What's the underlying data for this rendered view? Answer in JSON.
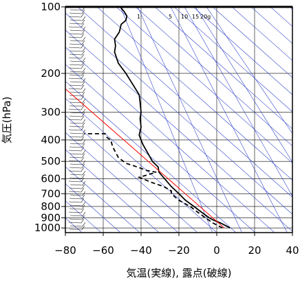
{
  "chart_data": {
    "type": "line",
    "subtype": "skew-T log-P emagram",
    "xlabel": "気温(実線), 露点(破線)",
    "ylabel": "気圧(hPa)",
    "xlim": [
      -80,
      40
    ],
    "ylim_hpa": [
      1050,
      100
    ],
    "y_scale": "log",
    "x_ticks": [
      -80,
      -60,
      -40,
      -20,
      0,
      20,
      40
    ],
    "x_tick_labels": [
      "−80",
      "−60",
      "−40",
      "−20",
      "0",
      "20",
      "40"
    ],
    "y_ticks": [
      100,
      200,
      300,
      400,
      500,
      600,
      700,
      800,
      900,
      1000
    ],
    "y_tick_labels": [
      "100",
      "200",
      "300",
      "400",
      "500",
      "600",
      "700",
      "800",
      "900",
      "1000"
    ],
    "grid": true,
    "mixing_ratio_labels": [
      "1",
      "5",
      "10",
      "15",
      "20g"
    ],
    "series": [
      {
        "role": "temperature",
        "style": "solid",
        "color": "#000000",
        "points": [
          [
            1000,
            7.0
          ],
          [
            980,
            5.0
          ],
          [
            950,
            2.0
          ],
          [
            920,
            -2.0
          ],
          [
            900,
            -4.0
          ],
          [
            850,
            -8.0
          ],
          [
            800,
            -12.0
          ],
          [
            750,
            -16.5
          ],
          [
            700,
            -20.0
          ],
          [
            650,
            -24.0
          ],
          [
            600,
            -27.5
          ],
          [
            560,
            -30.5
          ],
          [
            530,
            -31.0
          ],
          [
            510,
            -33.0
          ],
          [
            500,
            -34.0
          ],
          [
            450,
            -37.0
          ],
          [
            420,
            -39.0
          ],
          [
            400,
            -40.0
          ],
          [
            380,
            -41.0
          ],
          [
            350,
            -40.0
          ],
          [
            320,
            -40.5
          ],
          [
            300,
            -40.0
          ],
          [
            270,
            -40.5
          ],
          [
            250,
            -41.0
          ],
          [
            220,
            -45.0
          ],
          [
            200,
            -48.0
          ],
          [
            180,
            -52.0
          ],
          [
            160,
            -54.0
          ],
          [
            150,
            -53.5
          ],
          [
            140,
            -54.0
          ],
          [
            130,
            -51.5
          ],
          [
            120,
            -50.5
          ],
          [
            115,
            -48.0
          ],
          [
            110,
            -47.5
          ],
          [
            105,
            -49.0
          ],
          [
            100,
            -51.0
          ]
        ]
      },
      {
        "role": "dew-point",
        "style": "dashed",
        "color": "#000000",
        "points": [
          [
            1000,
            3.0
          ],
          [
            950,
            -2.0
          ],
          [
            900,
            -6.0
          ],
          [
            850,
            -10.0
          ],
          [
            800,
            -14.0
          ],
          [
            750,
            -20.0
          ],
          [
            700,
            -24.0
          ],
          [
            680,
            -24.0
          ],
          [
            650,
            -28.0
          ],
          [
            620,
            -35.0
          ],
          [
            600,
            -39.0
          ],
          [
            590,
            -41.0
          ],
          [
            580,
            -38.0
          ],
          [
            560,
            -32.0
          ],
          [
            550,
            -37.0
          ],
          [
            530,
            -42.0
          ],
          [
            510,
            -48.0
          ],
          [
            480,
            -52.0
          ],
          [
            430,
            -55.0
          ],
          [
            400,
            -56.0
          ],
          [
            390,
            -58.0
          ],
          [
            375,
            -59.0
          ],
          [
            375,
            -64.0
          ],
          [
            375,
            -70.0
          ]
        ]
      },
      {
        "role": "reference",
        "style": "solid",
        "color": "#ff0000",
        "points": [
          [
            1000,
            4.0
          ],
          [
            235,
            -80.0
          ]
        ]
      }
    ]
  }
}
